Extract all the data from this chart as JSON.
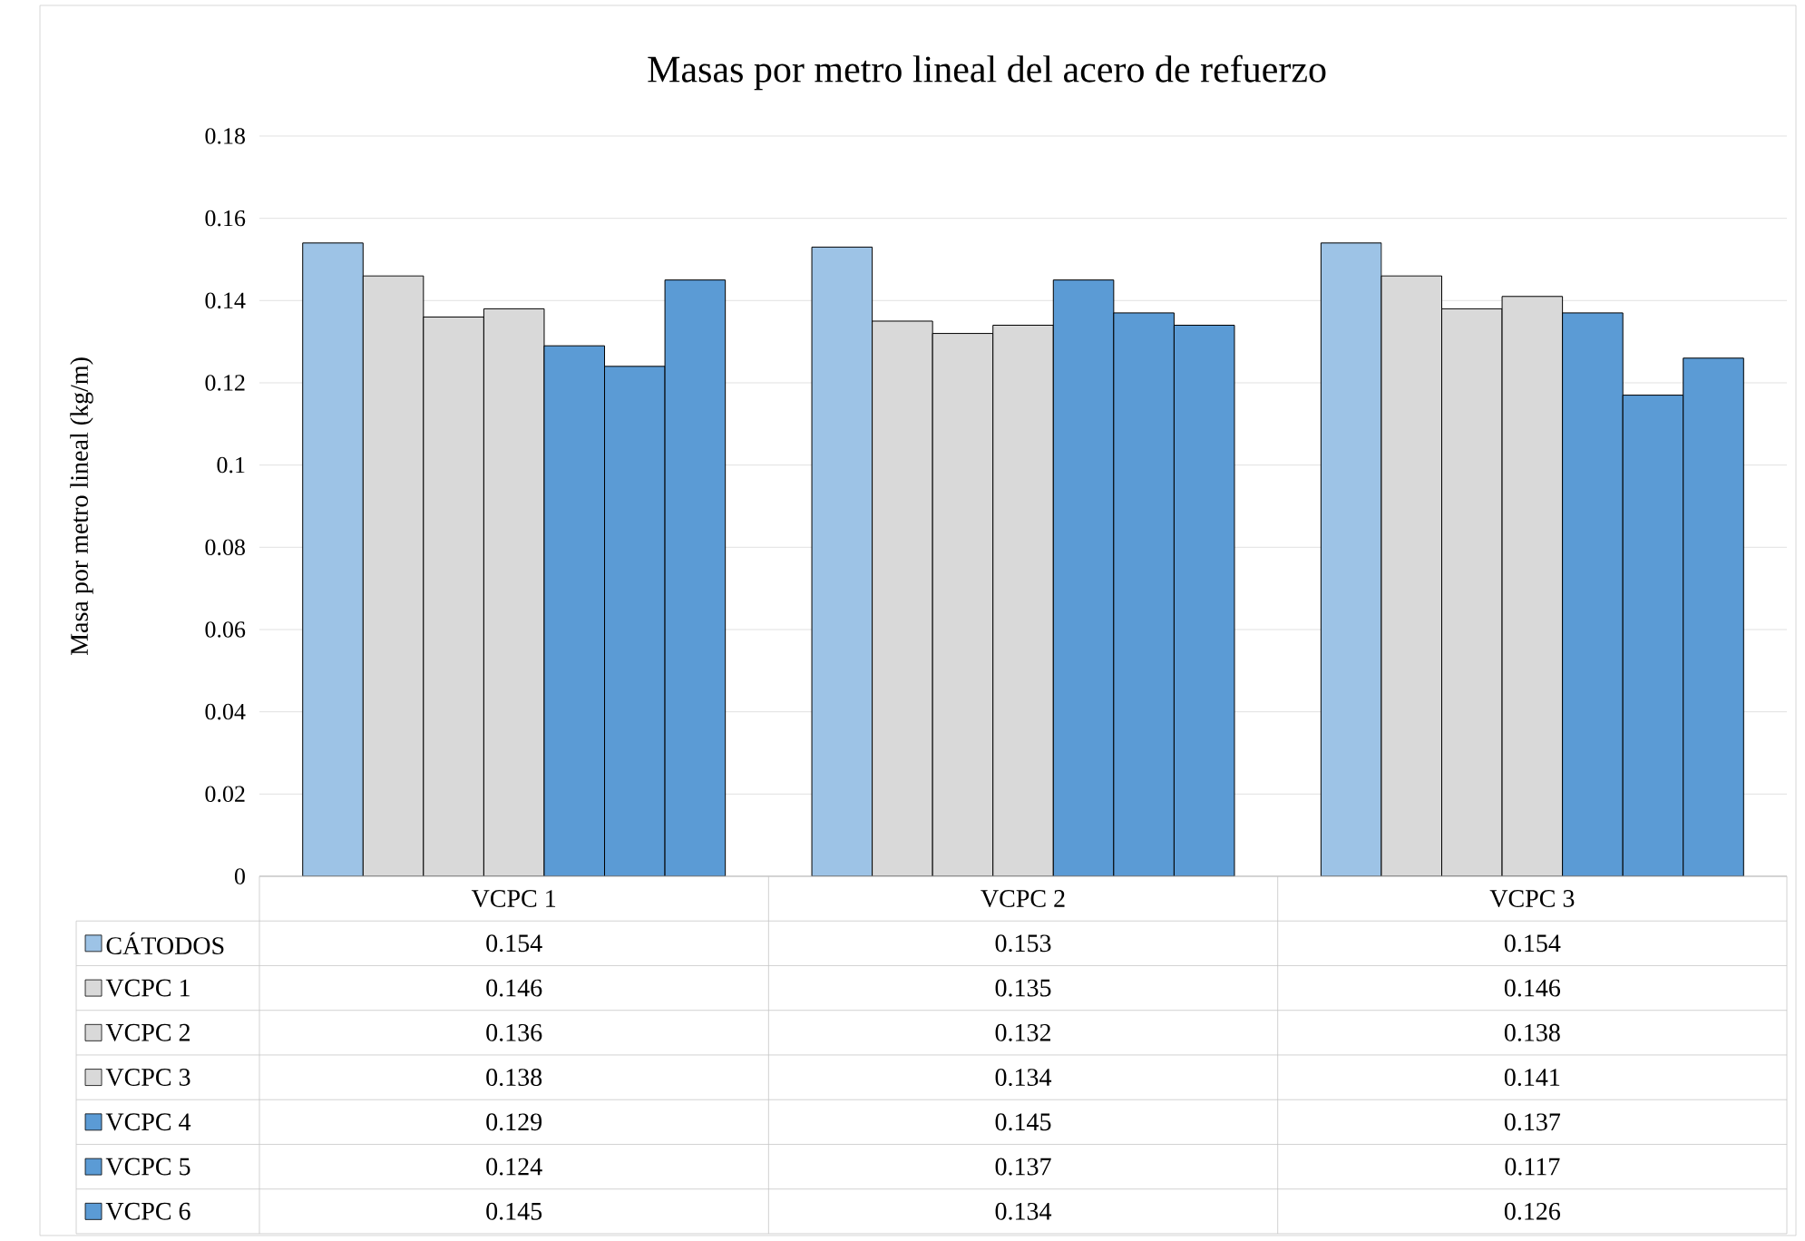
{
  "chart_data": {
    "type": "bar",
    "title": "Masas por metro lineal del acero de refuerzo",
    "ylabel": "Masa por metro lineal (kg/m)",
    "categories": [
      "VCPC 1",
      "VCPC 2",
      "VCPC 3"
    ],
    "series": [
      {
        "name": "CÁTODOS",
        "color": "#9dc3e6",
        "values": [
          0.154,
          0.153,
          0.154
        ]
      },
      {
        "name": "VCPC 1",
        "color": "#d9d9d9",
        "values": [
          0.146,
          0.135,
          0.146
        ]
      },
      {
        "name": "VCPC 2",
        "color": "#d9d9d9",
        "values": [
          0.136,
          0.132,
          0.138
        ]
      },
      {
        "name": "VCPC 3",
        "color": "#d9d9d9",
        "values": [
          0.138,
          0.134,
          0.141
        ]
      },
      {
        "name": "VCPC 4",
        "color": "#5b9bd5",
        "values": [
          0.129,
          0.145,
          0.137
        ]
      },
      {
        "name": "VCPC 5",
        "color": "#5b9bd5",
        "values": [
          0.124,
          0.137,
          0.117
        ]
      },
      {
        "name": "VCPC 6",
        "color": "#5b9bd5",
        "values": [
          0.145,
          0.134,
          0.126
        ]
      }
    ],
    "ylim": [
      0,
      0.18
    ],
    "yticks": [
      0,
      0.02,
      0.04,
      0.06,
      0.08,
      0.1,
      0.12,
      0.14,
      0.16,
      0.18
    ],
    "grid": "y",
    "legend": "bottom",
    "data_labels": true
  }
}
